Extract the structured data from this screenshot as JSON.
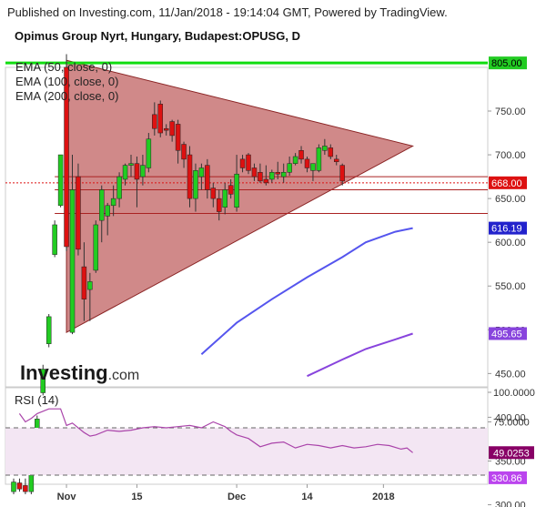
{
  "header": {
    "published": "Published on Investing.com, 11/Jan/2018 - 19:14:04 GMT, Powered by TradingView.",
    "instrument": "Opimus Group Nyrt, Hungary, Budapest:OPUSG, D"
  },
  "legend": [
    "EMA (50, close, 0)",
    "EMA (100, close, 0)",
    "EMA (200, close, 0)"
  ],
  "watermark": {
    "brand": "Investing",
    "suffix": ".com"
  },
  "rsi_label": "RSI (14)",
  "colors": {
    "up": "#22cc22",
    "down": "#dd1111",
    "ema50": "#5555ee",
    "ema100": "#8844dd",
    "ema200": "#bb44ee",
    "triangle": "#b34040",
    "resistance": "#11dd11",
    "rsi": "#aa44aa",
    "rsi_band": "#f3e6f3"
  },
  "chart_data": [
    {
      "type": "candlestick",
      "title": "Opimus Group Nyrt, Hungary, Budapest:OPUSG, D",
      "ylim": [
        255,
        820
      ],
      "y_ticks": [
        300,
        350,
        400,
        450,
        500,
        550,
        600,
        650,
        700,
        750
      ],
      "x_ticks": [
        {
          "index": 9,
          "label": "Nov"
        },
        {
          "index": 21,
          "label": "15"
        },
        {
          "index": 38,
          "label": "Dec"
        },
        {
          "index": 50,
          "label": "14"
        },
        {
          "index": 63,
          "label": "2018"
        }
      ],
      "candles": [
        {
          "o": 315,
          "h": 330,
          "l": 312,
          "c": 326
        },
        {
          "o": 325,
          "h": 330,
          "l": 315,
          "c": 318
        },
        {
          "o": 322,
          "h": 330,
          "l": 312,
          "c": 315
        },
        {
          "o": 315,
          "h": 345,
          "l": 312,
          "c": 342
        },
        {
          "o": 360,
          "h": 402,
          "l": 355,
          "c": 398
        },
        {
          "o": 428,
          "h": 460,
          "l": 425,
          "c": 455
        },
        {
          "o": 484,
          "h": 518,
          "l": 480,
          "c": 515
        },
        {
          "o": 586,
          "h": 625,
          "l": 583,
          "c": 620
        },
        {
          "o": 642,
          "h": 700,
          "l": 640,
          "c": 700
        },
        {
          "o": 800,
          "h": 815,
          "l": 590,
          "c": 595
        },
        {
          "o": 497,
          "h": 700,
          "l": 495,
          "c": 660
        },
        {
          "o": 675,
          "h": 690,
          "l": 585,
          "c": 592
        },
        {
          "o": 572,
          "h": 600,
          "l": 510,
          "c": 535
        },
        {
          "o": 546,
          "h": 565,
          "l": 510,
          "c": 555
        },
        {
          "o": 568,
          "h": 625,
          "l": 565,
          "c": 620
        },
        {
          "o": 625,
          "h": 665,
          "l": 600,
          "c": 660
        },
        {
          "o": 630,
          "h": 645,
          "l": 608,
          "c": 642
        },
        {
          "o": 642,
          "h": 665,
          "l": 630,
          "c": 650
        },
        {
          "o": 650,
          "h": 680,
          "l": 640,
          "c": 675
        },
        {
          "o": 672,
          "h": 690,
          "l": 665,
          "c": 688
        },
        {
          "o": 688,
          "h": 700,
          "l": 675,
          "c": 690
        },
        {
          "o": 690,
          "h": 698,
          "l": 640,
          "c": 672
        },
        {
          "o": 675,
          "h": 700,
          "l": 665,
          "c": 688
        },
        {
          "o": 685,
          "h": 725,
          "l": 680,
          "c": 718
        },
        {
          "o": 746,
          "h": 760,
          "l": 722,
          "c": 730
        },
        {
          "o": 758,
          "h": 762,
          "l": 720,
          "c": 725
        },
        {
          "o": 730,
          "h": 735,
          "l": 722,
          "c": 728
        },
        {
          "o": 738,
          "h": 740,
          "l": 715,
          "c": 722
        },
        {
          "o": 735,
          "h": 740,
          "l": 690,
          "c": 705
        },
        {
          "o": 712,
          "h": 715,
          "l": 685,
          "c": 695
        },
        {
          "o": 700,
          "h": 710,
          "l": 640,
          "c": 650
        },
        {
          "o": 650,
          "h": 690,
          "l": 635,
          "c": 682
        },
        {
          "o": 675,
          "h": 690,
          "l": 660,
          "c": 685
        },
        {
          "o": 688,
          "h": 695,
          "l": 650,
          "c": 660
        },
        {
          "o": 662,
          "h": 668,
          "l": 640,
          "c": 650
        },
        {
          "o": 650,
          "h": 660,
          "l": 625,
          "c": 635
        },
        {
          "o": 640,
          "h": 668,
          "l": 632,
          "c": 660
        },
        {
          "o": 665,
          "h": 672,
          "l": 650,
          "c": 655
        },
        {
          "o": 640,
          "h": 700,
          "l": 635,
          "c": 678
        },
        {
          "o": 695,
          "h": 700,
          "l": 680,
          "c": 685
        },
        {
          "o": 700,
          "h": 702,
          "l": 678,
          "c": 682
        },
        {
          "o": 685,
          "h": 690,
          "l": 670,
          "c": 675
        },
        {
          "o": 680,
          "h": 690,
          "l": 668,
          "c": 670
        },
        {
          "o": 672,
          "h": 688,
          "l": 665,
          "c": 668
        },
        {
          "o": 672,
          "h": 683,
          "l": 668,
          "c": 680
        },
        {
          "o": 680,
          "h": 692,
          "l": 672,
          "c": 678
        },
        {
          "o": 675,
          "h": 690,
          "l": 668,
          "c": 680
        },
        {
          "o": 680,
          "h": 698,
          "l": 676,
          "c": 690
        },
        {
          "o": 690,
          "h": 702,
          "l": 688,
          "c": 698
        },
        {
          "o": 705,
          "h": 710,
          "l": 690,
          "c": 695
        },
        {
          "o": 695,
          "h": 698,
          "l": 680,
          "c": 685
        },
        {
          "o": 682,
          "h": 690,
          "l": 670,
          "c": 690
        },
        {
          "o": 682,
          "h": 712,
          "l": 680,
          "c": 708
        },
        {
          "o": 705,
          "h": 718,
          "l": 700,
          "c": 710
        },
        {
          "o": 708,
          "h": 712,
          "l": 695,
          "c": 698
        },
        {
          "o": 695,
          "h": 700,
          "l": 688,
          "c": 692
        },
        {
          "o": 688,
          "h": 690,
          "l": 665,
          "c": 670
        }
      ],
      "ema": [
        {
          "name": "EMA (50, close, 0)",
          "last": 616.19,
          "points": [
            [
              0,
              185
            ],
            [
              8,
              278
            ],
            [
              14,
              330
            ],
            [
              20,
              380
            ],
            [
              26,
              430
            ],
            [
              32,
              472
            ],
            [
              38,
              508
            ],
            [
              44,
              535
            ],
            [
              50,
              560
            ],
            [
              56,
              583
            ],
            [
              60,
              600
            ],
            [
              65,
              612
            ],
            [
              68,
              616.19
            ]
          ]
        },
        {
          "name": "EMA (100, close, 0)",
          "last": 495.65,
          "points": [
            [
              0,
              110
            ],
            [
              8,
              185
            ],
            [
              14,
              240
            ],
            [
              20,
              290
            ],
            [
              26,
              332
            ],
            [
              32,
              370
            ],
            [
              38,
              400
            ],
            [
              44,
              425
            ],
            [
              50,
              447
            ],
            [
              56,
              466
            ],
            [
              60,
              478
            ],
            [
              65,
              489
            ],
            [
              68,
              495.65
            ]
          ]
        },
        {
          "name": "EMA (200, close, 0)",
          "last": 330.86,
          "points": [
            [
              34,
              160
            ],
            [
              38,
              200
            ],
            [
              44,
              240
            ],
            [
              48,
              262
            ],
            [
              52,
              282
            ],
            [
              56,
              300
            ],
            [
              60,
              313
            ],
            [
              64,
              323
            ],
            [
              68,
              330.86
            ]
          ]
        }
      ],
      "annotations": {
        "resistance": 805.0,
        "last_price": 668.0,
        "triangle": [
          [
            9,
            808
          ],
          [
            68,
            710
          ],
          [
            9,
            497
          ]
        ],
        "h_lines": [
          675,
          660,
          633
        ]
      },
      "price_labels": [
        {
          "value": 805.0,
          "text": "805.00",
          "bg": "#22cc22",
          "fg": "#000000"
        },
        {
          "value": 668.0,
          "text": "668.00",
          "bg": "#dd1111",
          "fg": "#ffffff"
        },
        {
          "value": 616.19,
          "text": "616.19",
          "bg": "#2222cc",
          "fg": "#ffffff"
        },
        {
          "value": 495.65,
          "text": "495.65",
          "bg": "#8844dd",
          "fg": "#ffffff"
        },
        {
          "value": 330.86,
          "text": "330.86",
          "bg": "#bb44ee",
          "fg": "#ffffff"
        }
      ]
    },
    {
      "type": "line",
      "title": "RSI (14)",
      "ylim": [
        37,
        100
      ],
      "y_ticks": [
        {
          "v": 100,
          "text": "100.0000"
        },
        {
          "v": 75,
          "text": "75.0000"
        }
      ],
      "bands": [
        30,
        70
      ],
      "last": 49.0253,
      "last_text": "49.0253",
      "values": [
        [
          1,
          82
        ],
        [
          2,
          75
        ],
        [
          3,
          78
        ],
        [
          4,
          82
        ],
        [
          6,
          86
        ],
        [
          8,
          86
        ],
        [
          9,
          72
        ],
        [
          10,
          74
        ],
        [
          12,
          66
        ],
        [
          13,
          63
        ],
        [
          14,
          64
        ],
        [
          16,
          68
        ],
        [
          18,
          67
        ],
        [
          20,
          68
        ],
        [
          22,
          70
        ],
        [
          24,
          71
        ],
        [
          26,
          70
        ],
        [
          28,
          71
        ],
        [
          30,
          72
        ],
        [
          32,
          70
        ],
        [
          34,
          75
        ],
        [
          36,
          71
        ],
        [
          37,
          67
        ],
        [
          38,
          64
        ],
        [
          40,
          61
        ],
        [
          42,
          54
        ],
        [
          44,
          57
        ],
        [
          46,
          58
        ],
        [
          48,
          53
        ],
        [
          50,
          56
        ],
        [
          52,
          55
        ],
        [
          54,
          53
        ],
        [
          56,
          55
        ],
        [
          58,
          53
        ],
        [
          60,
          54
        ],
        [
          62,
          56
        ],
        [
          64,
          55
        ],
        [
          66,
          52
        ],
        [
          67,
          53
        ],
        [
          68,
          49.0253
        ]
      ]
    }
  ]
}
